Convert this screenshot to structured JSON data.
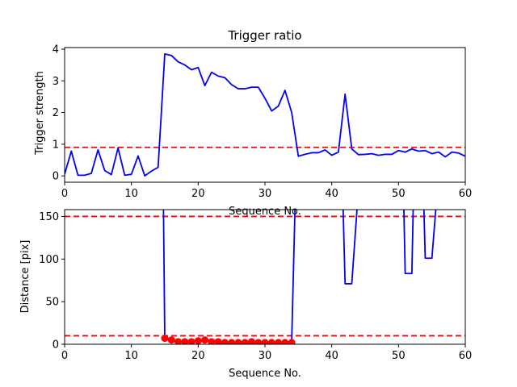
{
  "chart_data": [
    {
      "type": "line",
      "title": "Trigger ratio",
      "xlabel": "Sequence No.",
      "ylabel": "Trigger strength",
      "xlim": [
        0,
        60
      ],
      "ylim": [
        -0.2,
        4.05
      ],
      "xticks": [
        "0",
        "10",
        "20",
        "30",
        "40",
        "50",
        "60"
      ],
      "yticks": [
        "0",
        "1",
        "2",
        "3",
        "4"
      ],
      "series": [
        {
          "color": "#0000ff",
          "x": [
            0,
            1,
            2,
            3,
            4,
            5,
            6,
            7,
            8,
            9,
            10,
            11,
            12,
            13,
            14,
            15,
            16,
            17,
            18,
            19,
            20,
            21,
            22,
            23,
            24,
            25,
            26,
            27,
            28,
            29,
            30,
            31,
            32,
            33,
            34,
            35,
            36,
            37,
            38,
            39,
            40,
            41,
            42,
            43,
            44,
            45,
            46,
            47,
            48,
            49,
            50,
            51,
            52,
            53,
            54,
            55,
            56,
            57,
            58,
            59,
            60
          ],
          "values": [
            0.05,
            0.78,
            0.02,
            0.02,
            0.08,
            0.82,
            0.17,
            0.04,
            0.88,
            0.02,
            0.05,
            0.63,
            0.0,
            0.15,
            0.27,
            3.85,
            3.8,
            3.6,
            3.5,
            3.35,
            3.42,
            2.85,
            3.27,
            3.15,
            3.1,
            2.88,
            2.75,
            2.75,
            2.8,
            2.8,
            2.45,
            2.05,
            2.2,
            2.7,
            2.0,
            0.62,
            0.68,
            0.73,
            0.73,
            0.82,
            0.65,
            0.75,
            2.58,
            0.85,
            0.67,
            0.68,
            0.7,
            0.65,
            0.68,
            0.68,
            0.8,
            0.75,
            0.85,
            0.78,
            0.8,
            0.7,
            0.75,
            0.6,
            0.75,
            0.72,
            0.62
          ]
        }
      ],
      "threshold_lines": [
        {
          "color": "#ff0000",
          "y": 0.9
        }
      ],
      "grid": false
    },
    {
      "type": "line",
      "title": "",
      "xlabel": "Sequence No.",
      "ylabel": "Distance [pix]",
      "xlim": [
        0,
        60
      ],
      "ylim": [
        0,
        158
      ],
      "xticks": [
        "0",
        "10",
        "20",
        "30",
        "40",
        "50",
        "60"
      ],
      "yticks": [
        "0",
        "50",
        "100",
        "150"
      ],
      "series": [
        {
          "color": "#0000ff",
          "x": [
            14.8,
            15,
            16,
            17,
            18,
            19,
            20,
            21,
            22,
            23,
            24,
            25,
            26,
            27,
            28,
            29,
            30,
            31,
            32,
            33,
            34,
            34.5
          ],
          "values": [
            160,
            7,
            5,
            3,
            3,
            3,
            4,
            5,
            3,
            3,
            2,
            2,
            2,
            2,
            3,
            2,
            2,
            2,
            2,
            2,
            2,
            160
          ]
        },
        {
          "color": "#0000ff",
          "x": [
            41.7,
            42,
            43,
            43.8
          ],
          "values": [
            160,
            71,
            71,
            160
          ]
        },
        {
          "color": "#0000ff",
          "x": [
            50.8,
            51,
            52,
            52.2
          ],
          "values": [
            160,
            83,
            83,
            160
          ]
        },
        {
          "color": "#0000ff",
          "x": [
            53.8,
            54,
            55,
            55.6
          ],
          "values": [
            160,
            101,
            101,
            160
          ]
        }
      ],
      "markers": {
        "color": "#ff0000",
        "x": [
          15,
          16,
          17,
          18,
          19,
          20,
          21,
          22,
          23,
          24,
          25,
          26,
          27,
          28,
          29,
          30,
          31,
          32,
          33,
          34
        ],
        "values": [
          7,
          5,
          3,
          3,
          3,
          4,
          5,
          3,
          3,
          2,
          2,
          2,
          2,
          3,
          2,
          2,
          2,
          2,
          2,
          2
        ]
      },
      "threshold_lines": [
        {
          "color": "#ff0000",
          "y": 150
        },
        {
          "color": "#ff0000",
          "y": 10
        }
      ],
      "grid": false
    }
  ]
}
